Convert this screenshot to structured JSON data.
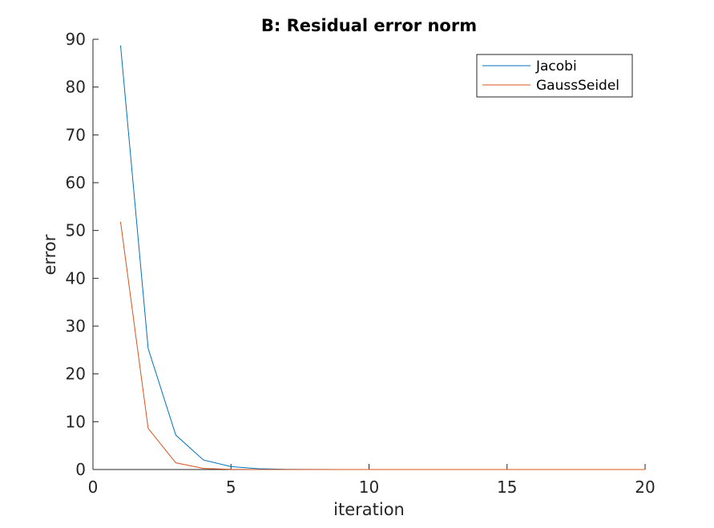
{
  "chart_data": {
    "type": "line",
    "title": "B: Residual error norm",
    "xlabel": "iteration",
    "ylabel": "error",
    "xlim": [
      0,
      20
    ],
    "ylim": [
      0,
      90
    ],
    "xticks": [
      0,
      5,
      10,
      15,
      20
    ],
    "yticks": [
      0,
      10,
      20,
      30,
      40,
      50,
      60,
      70,
      80,
      90
    ],
    "legend_position": "top-right",
    "grid": false,
    "series": [
      {
        "name": "Jacobi",
        "color": "#0072BD",
        "x": [
          1,
          2,
          3,
          4,
          5,
          6,
          7,
          8,
          9,
          10,
          11,
          12,
          13,
          14,
          15,
          16,
          17,
          18,
          19,
          20
        ],
        "y": [
          88.7,
          25.3,
          7.2,
          2.0,
          0.6,
          0.17,
          0.05,
          0.014,
          0.004,
          0.001,
          0.0003,
          0.0001,
          0.0,
          0.0,
          0.0,
          0.0,
          0.0,
          0.0,
          0.0,
          0.0
        ]
      },
      {
        "name": "GaussSeidel",
        "color": "#D95319",
        "x": [
          1,
          2,
          3,
          4,
          5,
          6,
          7,
          8,
          9,
          10,
          11,
          12,
          13,
          14,
          15,
          16,
          17,
          18,
          19,
          20
        ],
        "y": [
          51.8,
          8.6,
          1.4,
          0.23,
          0.04,
          0.006,
          0.001,
          0.0002,
          0.0,
          0.0,
          0.0,
          0.0,
          0.0,
          0.0,
          0.0,
          0.0,
          0.0,
          0.0,
          0.0,
          0.0
        ]
      }
    ]
  }
}
